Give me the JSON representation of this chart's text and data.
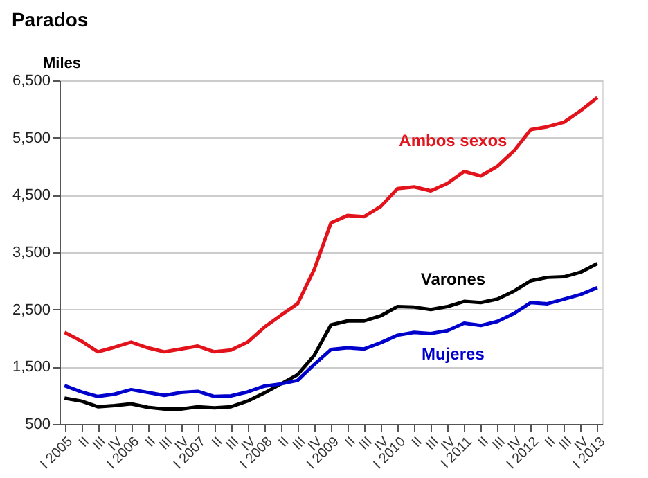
{
  "chart_data": {
    "type": "line",
    "title": "Parados",
    "ylabel": "Miles",
    "categories": [
      "I 2005",
      "II",
      "III",
      "IV",
      "I 2006",
      "II",
      "III",
      "IV",
      "I 2007",
      "II",
      "III",
      "IV",
      "I 2008",
      "II",
      "III",
      "IV",
      "I 2009",
      "II",
      "III",
      "IV",
      "I 2010",
      "II",
      "III",
      "IV",
      "I 2011",
      "II",
      "III",
      "IV",
      "I 2012",
      "II",
      "III",
      "IV",
      "I 2013"
    ],
    "series": [
      {
        "name": "Ambos sexos",
        "color": "#e3131b",
        "values": [
          2100,
          1950,
          1760,
          1840,
          1930,
          1830,
          1760,
          1810,
          1860,
          1760,
          1790,
          1930,
          2190,
          2400,
          2600,
          3200,
          4010,
          4140,
          4120,
          4300,
          4610,
          4640,
          4570,
          4700,
          4910,
          4830,
          5000,
          5270,
          5640,
          5690,
          5770,
          5970,
          6200
        ]
      },
      {
        "name": "Varones",
        "color": "#000000",
        "values": [
          950,
          900,
          800,
          820,
          850,
          790,
          760,
          760,
          800,
          780,
          800,
          900,
          1040,
          1200,
          1360,
          1700,
          2230,
          2300,
          2300,
          2390,
          2550,
          2540,
          2500,
          2550,
          2640,
          2620,
          2680,
          2820,
          3000,
          3060,
          3070,
          3150,
          3300
        ]
      },
      {
        "name": "Mujeres",
        "color": "#0000cc",
        "values": [
          1170,
          1060,
          980,
          1020,
          1100,
          1050,
          1000,
          1050,
          1070,
          980,
          990,
          1060,
          1160,
          1200,
          1260,
          1540,
          1800,
          1830,
          1810,
          1920,
          2050,
          2100,
          2080,
          2130,
          2260,
          2220,
          2290,
          2430,
          2620,
          2600,
          2680,
          2760,
          2880
        ]
      }
    ],
    "ylim": [
      500,
      6500
    ],
    "yticks": [
      {
        "value": 500,
        "label": "500"
      },
      {
        "value": 1500,
        "label": "1,500"
      },
      {
        "value": 2500,
        "label": "2,500"
      },
      {
        "value": 3500,
        "label": "3,500"
      },
      {
        "value": 4500,
        "label": "4,500"
      },
      {
        "value": 5500,
        "label": "5,500"
      },
      {
        "value": 6500,
        "label": "6,500"
      }
    ],
    "grid": "y",
    "marker": "none",
    "line_style": "solid"
  }
}
